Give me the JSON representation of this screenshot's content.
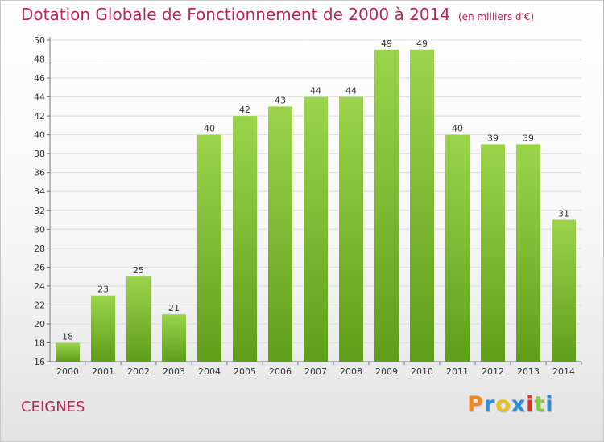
{
  "header": {
    "title": "Dotation Globale de Fonctionnement de 2000 à 2014",
    "unit": "(en milliers d'€)"
  },
  "place_name": "CEIGNES",
  "logo": {
    "text": "Proxiti",
    "colors": [
      "#f08a1c",
      "#2a8fd6",
      "#e8c21a",
      "#2a8fd6",
      "#e8311c",
      "#8cc63f",
      "#2a8fd6"
    ]
  },
  "colors": {
    "bar_top": "#9bd44a",
    "bar_bottom": "#5f9e1a",
    "title": "#c0245b"
  },
  "chart_data": {
    "type": "bar",
    "categories": [
      "2000",
      "2001",
      "2002",
      "2003",
      "2004",
      "2005",
      "2006",
      "2007",
      "2008",
      "2009",
      "2010",
      "2011",
      "2012",
      "2013",
      "2014"
    ],
    "values": [
      18,
      23,
      25,
      21,
      40,
      42,
      43,
      44,
      44,
      49,
      49,
      40,
      39,
      39,
      31
    ],
    "data_labels": [
      "18",
      "23",
      "25",
      "21",
      "40",
      "42",
      "43",
      "44",
      "44",
      "49",
      "49",
      "40",
      "39",
      "39",
      "31"
    ],
    "yticks": [
      16,
      18,
      20,
      22,
      24,
      26,
      28,
      30,
      32,
      34,
      36,
      38,
      40,
      42,
      44,
      46,
      48,
      50
    ],
    "ylim": [
      16,
      50
    ],
    "grid": true
  }
}
